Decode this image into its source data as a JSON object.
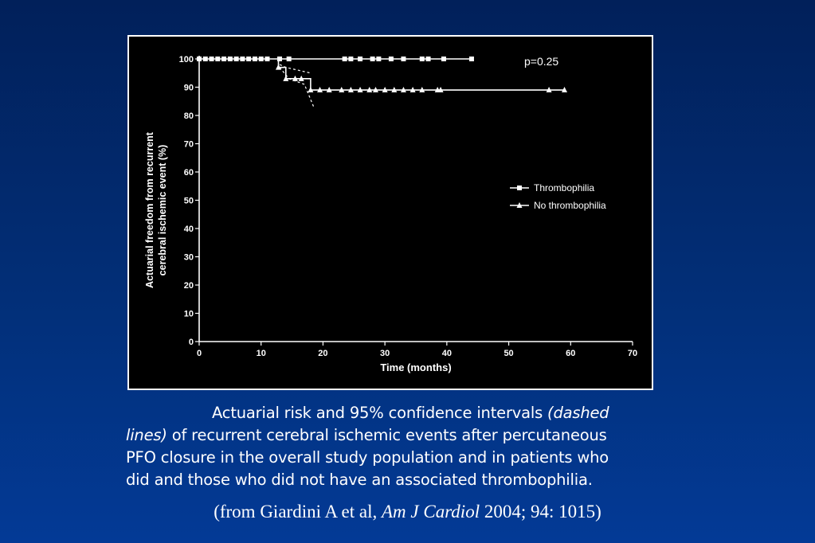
{
  "chart_data": {
    "type": "line",
    "subtype": "kaplan-meier step",
    "title": "",
    "xlabel": "Time (months)",
    "ylabel_line1": "Actuarial freedom from recurrent",
    "ylabel_line2": "cerebral ischemic event (%)",
    "xlim": [
      0,
      70
    ],
    "ylim": [
      0,
      100
    ],
    "x_ticks": [
      "0",
      "10",
      "20",
      "30",
      "40",
      "50",
      "60",
      "70"
    ],
    "y_ticks": [
      "0",
      "10",
      "20",
      "30",
      "40",
      "50",
      "60",
      "70",
      "80",
      "90",
      "100"
    ],
    "annotation": "p=0.25",
    "legend_position": "right-middle",
    "grid": false,
    "series": [
      {
        "name": "Thrombophilia",
        "marker": "square",
        "line": [
          [
            0,
            100
          ],
          [
            44,
            100
          ]
        ],
        "points": [
          [
            0,
            100
          ],
          [
            1,
            100
          ],
          [
            2,
            100
          ],
          [
            3,
            100
          ],
          [
            4,
            100
          ],
          [
            5,
            100
          ],
          [
            6,
            100
          ],
          [
            7,
            100
          ],
          [
            8,
            100
          ],
          [
            9,
            100
          ],
          [
            10,
            100
          ],
          [
            11,
            100
          ],
          [
            13,
            100
          ],
          [
            14.5,
            100
          ],
          [
            23.5,
            100
          ],
          [
            24.5,
            100
          ],
          [
            26,
            100
          ],
          [
            28,
            100
          ],
          [
            29,
            100
          ],
          [
            31,
            100
          ],
          [
            33,
            100
          ],
          [
            36,
            100
          ],
          [
            37,
            100
          ],
          [
            39.5,
            100
          ],
          [
            44,
            100
          ]
        ]
      },
      {
        "name": "No thrombophilia",
        "marker": "triangle",
        "line": [
          [
            12.8,
            100
          ],
          [
            12.8,
            97
          ],
          [
            14,
            97
          ],
          [
            14,
            93
          ],
          [
            18,
            93
          ],
          [
            18,
            89
          ],
          [
            59,
            89
          ]
        ],
        "points": [
          [
            12.8,
            97
          ],
          [
            14,
            93
          ],
          [
            15.5,
            93
          ],
          [
            16.5,
            93
          ],
          [
            18,
            89
          ],
          [
            19.5,
            89
          ],
          [
            21,
            89
          ],
          [
            23,
            89
          ],
          [
            24.5,
            89
          ],
          [
            26,
            89
          ],
          [
            27.5,
            89
          ],
          [
            28.5,
            89
          ],
          [
            30,
            89
          ],
          [
            31.5,
            89
          ],
          [
            33,
            89
          ],
          [
            34.5,
            89
          ],
          [
            36,
            89
          ],
          [
            38.5,
            89
          ],
          [
            39,
            89
          ],
          [
            56.5,
            89
          ],
          [
            59,
            89
          ]
        ]
      }
    ],
    "confidence_interval": {
      "label": "95% confidence intervals (dashed lines)",
      "upper": [
        [
          13,
          98
        ],
        [
          14,
          97
        ],
        [
          18,
          95
        ]
      ],
      "lower": [
        [
          13,
          97
        ],
        [
          14.5,
          93
        ],
        [
          17,
          91
        ],
        [
          18.5,
          83
        ]
      ]
    }
  },
  "caption": {
    "line1_plain": "Actuarial risk and 95% confidence intervals ",
    "line1_italic": "(dashed",
    "line2_italic": "lines)",
    "line2_plain": " of recurrent cerebral ischemic events after percutaneous",
    "line3": "PFO closure in the overall study population and in patients who",
    "line4": "did and those who did not have an associated thrombophilia."
  },
  "source": {
    "prefix": "(from Giardini A et al, ",
    "journal": "Am J Cardiol",
    "suffix": " 2004; 94: 1015)"
  },
  "colors": {
    "background": "#022f78",
    "chart_background": "#000000",
    "foreground": "#ffffff"
  }
}
